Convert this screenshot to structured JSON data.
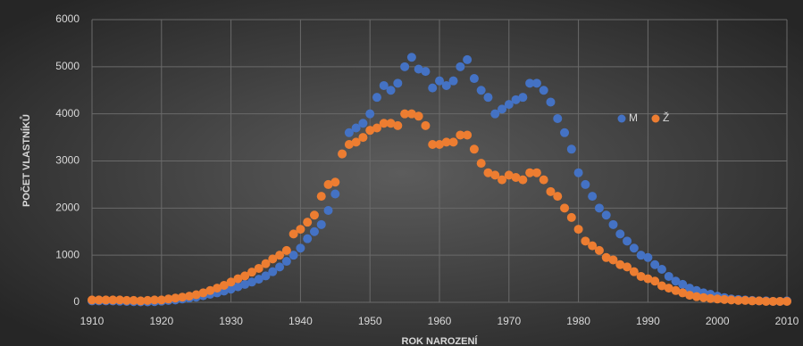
{
  "chart_data": {
    "type": "scatter",
    "x_label": "ROK NAROZENÍ",
    "y_label": "POČET VLASTNÍKŮ",
    "x": [
      1910,
      1911,
      1912,
      1913,
      1914,
      1915,
      1916,
      1917,
      1918,
      1919,
      1920,
      1921,
      1922,
      1923,
      1924,
      1925,
      1926,
      1927,
      1928,
      1929,
      1930,
      1931,
      1932,
      1933,
      1934,
      1935,
      1936,
      1937,
      1938,
      1939,
      1940,
      1941,
      1942,
      1943,
      1944,
      1945,
      1946,
      1947,
      1948,
      1949,
      1950,
      1951,
      1952,
      1953,
      1954,
      1955,
      1956,
      1957,
      1958,
      1959,
      1960,
      1961,
      1962,
      1963,
      1964,
      1965,
      1966,
      1967,
      1968,
      1969,
      1970,
      1971,
      1972,
      1973,
      1974,
      1975,
      1976,
      1977,
      1978,
      1979,
      1980,
      1981,
      1982,
      1983,
      1984,
      1985,
      1986,
      1987,
      1988,
      1989,
      1990,
      1991,
      1992,
      1993,
      1994,
      1995,
      1996,
      1997,
      1998,
      1999,
      2000,
      2001,
      2002,
      2003,
      2004,
      2005,
      2006,
      2007,
      2008,
      2009,
      2010
    ],
    "series": [
      {
        "name": "M",
        "color": "#4472c4",
        "values": [
          30,
          30,
          30,
          30,
          25,
          20,
          15,
          10,
          10,
          15,
          25,
          40,
          50,
          70,
          90,
          110,
          140,
          170,
          200,
          240,
          280,
          330,
          380,
          430,
          490,
          560,
          650,
          750,
          870,
          1000,
          1150,
          1350,
          1500,
          1650,
          1950,
          2300,
          3150,
          3600,
          3700,
          3800,
          4000,
          4350,
          4600,
          4500,
          4650,
          5000,
          5200,
          4950,
          4900,
          4550,
          4700,
          4600,
          4700,
          5000,
          5150,
          4750,
          4500,
          4350,
          4000,
          4100,
          4200,
          4300,
          4350,
          4650,
          4650,
          4500,
          4250,
          3900,
          3600,
          3250,
          2750,
          2500,
          2250,
          2000,
          1850,
          1650,
          1450,
          1300,
          1150,
          1000,
          950,
          800,
          700,
          550,
          450,
          380,
          300,
          250,
          200,
          170,
          130,
          100,
          70,
          60,
          50,
          40,
          30,
          30,
          20,
          20,
          30
        ]
      },
      {
        "name": "Ž",
        "color": "#ed7d31",
        "values": [
          50,
          50,
          50,
          50,
          50,
          40,
          40,
          30,
          40,
          50,
          50,
          70,
          90,
          110,
          130,
          160,
          200,
          250,
          300,
          360,
          430,
          500,
          560,
          640,
          720,
          820,
          920,
          1000,
          1100,
          1450,
          1550,
          1700,
          1850,
          2250,
          2500,
          2550,
          3150,
          3350,
          3400,
          3500,
          3650,
          3700,
          3800,
          3800,
          3750,
          4000,
          4000,
          3950,
          3750,
          3350,
          3350,
          3400,
          3400,
          3550,
          3550,
          3250,
          2950,
          2750,
          2700,
          2600,
          2700,
          2650,
          2600,
          2750,
          2750,
          2600,
          2350,
          2250,
          2000,
          1800,
          1550,
          1300,
          1200,
          1100,
          950,
          900,
          800,
          750,
          650,
          550,
          500,
          450,
          350,
          300,
          250,
          200,
          150,
          120,
          100,
          80,
          70,
          60,
          50,
          40,
          40,
          30,
          30,
          20,
          20,
          20,
          20
        ]
      }
    ],
    "xlim": [
      1910,
      2010
    ],
    "xticks": [
      1910,
      1920,
      1930,
      1940,
      1950,
      1960,
      1970,
      1980,
      1990,
      2000,
      2010
    ],
    "ylim": [
      0,
      6000
    ],
    "yticks": [
      0,
      1000,
      2000,
      3000,
      4000,
      5000,
      6000
    ],
    "grid": true,
    "legend": "right"
  }
}
